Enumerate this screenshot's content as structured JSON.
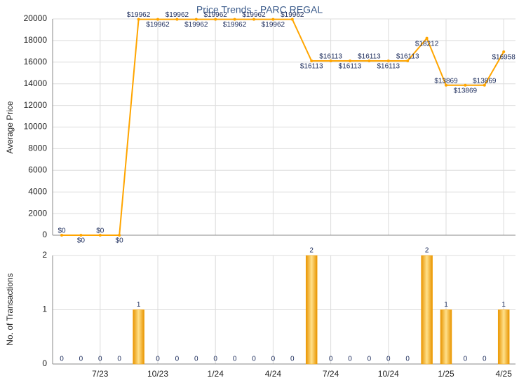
{
  "chart_data": [
    {
      "type": "line",
      "title": "Price Trends - PARC REGAL",
      "y_label": "Average Price",
      "color": "#ffa500",
      "values": [
        0,
        0,
        0,
        0,
        19962,
        19962,
        19962,
        19962,
        19962,
        19962,
        19962,
        19962,
        19962,
        16113,
        16113,
        16113,
        16113,
        16113,
        16113,
        18212,
        13869,
        13869,
        13869,
        16958
      ],
      "value_labels": [
        "$0",
        "$0",
        "$0",
        "$0",
        "$19962",
        "$19962",
        "$19962",
        "$19962",
        "$19962",
        "$19962",
        "$19962",
        "$19962",
        "$19962",
        "$16113",
        "$16113",
        "$16113",
        "$16113",
        "$16113",
        "$16113",
        "$18212",
        "$13869",
        "$13869",
        "$13869",
        "$16958"
      ],
      "ylim": [
        0,
        20000
      ],
      "yticks": [
        0,
        2000,
        4000,
        6000,
        8000,
        10000,
        12000,
        14000,
        16000,
        18000,
        20000
      ],
      "grid": true
    },
    {
      "type": "bar",
      "y_label": "No. of Transactions",
      "color": "#f5a000",
      "categories": [
        null,
        null,
        "7/23",
        null,
        null,
        "10/23",
        null,
        null,
        "1/24",
        null,
        null,
        "4/24",
        null,
        null,
        "7/24",
        null,
        null,
        "10/24",
        null,
        null,
        "1/25",
        null,
        null,
        "4/25"
      ],
      "values": [
        0,
        0,
        0,
        0,
        1,
        0,
        0,
        0,
        0,
        0,
        0,
        0,
        0,
        2,
        0,
        0,
        0,
        0,
        0,
        2,
        1,
        0,
        0,
        1
      ],
      "ylim": [
        0,
        2
      ],
      "yticks": [
        0,
        1,
        2
      ],
      "grid": true
    }
  ]
}
